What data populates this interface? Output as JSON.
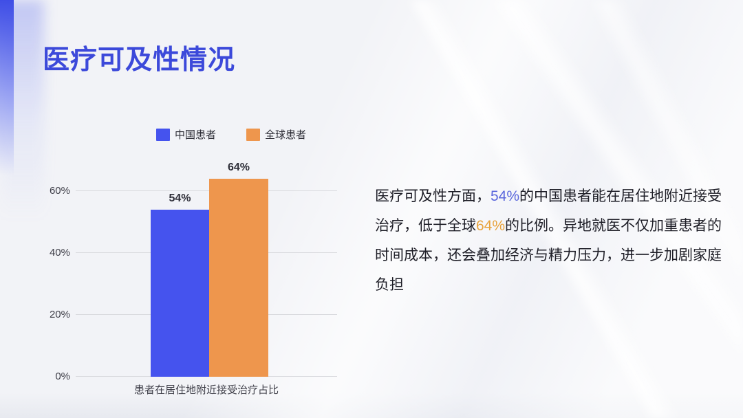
{
  "slide": {
    "title": "医疗可及性情况"
  },
  "legend": {
    "items": [
      {
        "label": "中国患者",
        "color": "#4553ee"
      },
      {
        "label": "全球患者",
        "color": "#ee964d"
      }
    ]
  },
  "chart_data": {
    "type": "bar",
    "categories": [
      "患者在居住地附近接受治疗占比"
    ],
    "series": [
      {
        "name": "中国患者",
        "values": [
          54
        ],
        "value_label": "54%",
        "color": "#4553ee"
      },
      {
        "name": "全球患者",
        "values": [
          64
        ],
        "value_label": "64%",
        "color": "#ee964d"
      }
    ],
    "title": "",
    "xlabel": "患者在居住地附近接受治疗占比",
    "ylabel": "",
    "ylim": [
      0,
      68
    ],
    "yticks": [
      {
        "label": "60%",
        "value": 60
      },
      {
        "label": "40%",
        "value": 40
      },
      {
        "label": "20%",
        "value": 20
      },
      {
        "label": "0%",
        "value": 0
      }
    ],
    "grid": true,
    "legend_position": "top"
  },
  "paragraph": {
    "part1": "医疗可及性方面，",
    "highlight1": "54%",
    "part2": "的中国患者能在居住地附近接受治疗，低于全球",
    "highlight2": "64%",
    "part3": "的比例。异地就医不仅加重患者的时间成本，还会叠加经济与精力压力，进一步加剧家庭负担"
  },
  "colors": {
    "title_blue": "#3c49da",
    "bar_blue": "#4553ee",
    "bar_orange": "#ee964d",
    "highlight_blue": "#5a67dc",
    "highlight_orange": "#e8a33c",
    "background": "#f2f3f7",
    "gridline": "#d9dade",
    "body_text": "#1d1d26"
  }
}
